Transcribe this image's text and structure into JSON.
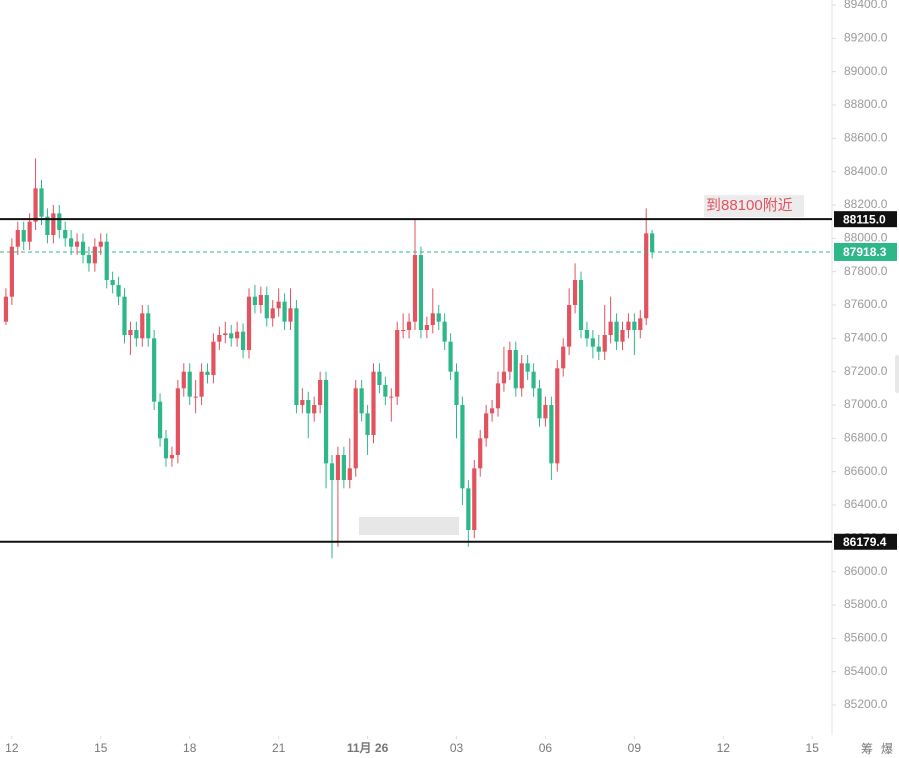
{
  "chart_data": {
    "type": "candlestick",
    "up_color": "#e2525f",
    "down_color": "#2eb88a",
    "ylim": [
      85100,
      89430
    ],
    "yticks": [
      {
        "value": 85200,
        "label": "85200.0"
      },
      {
        "value": 85400,
        "label": "85400.0"
      },
      {
        "value": 85600,
        "label": "85600.0"
      },
      {
        "value": 85800,
        "label": "85800.0"
      },
      {
        "value": 86000,
        "label": "86000.0"
      },
      {
        "value": 86200,
        "label": "86200.0"
      },
      {
        "value": 86400,
        "label": "86400.0"
      },
      {
        "value": 86600,
        "label": "86600.0"
      },
      {
        "value": 86800,
        "label": "86800.0"
      },
      {
        "value": 87000,
        "label": "87000.0"
      },
      {
        "value": 87200,
        "label": "87200.0"
      },
      {
        "value": 87400,
        "label": "87400.0"
      },
      {
        "value": 87600,
        "label": "87600.0"
      },
      {
        "value": 87800,
        "label": "87800.0"
      },
      {
        "value": 88000,
        "label": "88000.0"
      },
      {
        "value": 88200,
        "label": "88200.0"
      },
      {
        "value": 88400,
        "label": "88400.0"
      },
      {
        "value": 88600,
        "label": "88600.0"
      },
      {
        "value": 88800,
        "label": "88800.0"
      },
      {
        "value": 89000,
        "label": "89000.0"
      },
      {
        "value": 89200,
        "label": "89200.0"
      },
      {
        "value": 89400,
        "label": "89400.0"
      }
    ],
    "xlim": [
      -1,
      139
    ],
    "xticks": [
      {
        "value": 1,
        "label": "12"
      },
      {
        "value": 16,
        "label": "15"
      },
      {
        "value": 31,
        "label": "18"
      },
      {
        "value": 46,
        "label": "21"
      },
      {
        "value": 61,
        "label": "11月 26"
      },
      {
        "value": 76,
        "label": "03"
      },
      {
        "value": 91,
        "label": "06"
      },
      {
        "value": 106,
        "label": "09"
      },
      {
        "value": 121,
        "label": "12"
      },
      {
        "value": 136,
        "label": "15"
      }
    ],
    "open": [
      87500,
      87650,
      87950,
      88050,
      87980,
      88100,
      88300,
      88130,
      88020,
      88150,
      88050,
      88000,
      87950,
      87980,
      87900,
      87850,
      87950,
      87980,
      87750,
      87720,
      87650,
      87420,
      87450,
      87400,
      87550,
      87400,
      87020,
      86800,
      86680,
      86700,
      87100,
      87200,
      87050,
      87050,
      87200,
      87180,
      87380,
      87420,
      87430,
      87400,
      87440,
      87330,
      87650,
      87600,
      87660,
      87520,
      87580,
      87620,
      87500,
      87580,
      87000,
      87030,
      86950,
      87000,
      87150,
      86650,
      86550,
      86700,
      86550,
      86620,
      87100,
      86950,
      86820,
      87200,
      87120,
      87050,
      87050,
      87450,
      87450,
      87500,
      87900,
      87450,
      87480,
      87550,
      87500,
      87380,
      87200,
      87000,
      86500,
      86250,
      86620,
      86800,
      86950,
      86980,
      87130,
      87200,
      87330,
      87100,
      87250,
      87200,
      87100,
      86920,
      87000,
      86650,
      87220,
      87350,
      87600,
      87750,
      87450,
      87400,
      87350,
      87320,
      87420,
      87500,
      87380,
      87450,
      87500,
      87450,
      87520,
      88030
    ],
    "high": [
      87700,
      88000,
      88100,
      88100,
      88150,
      88480,
      88350,
      88180,
      88200,
      88200,
      88100,
      88050,
      88030,
      88030,
      87950,
      88000,
      88030,
      88030,
      87800,
      87770,
      87700,
      87500,
      87500,
      87600,
      87600,
      87450,
      87070,
      86850,
      86750,
      87150,
      87250,
      87250,
      87150,
      87250,
      87250,
      87430,
      87470,
      87500,
      87480,
      87500,
      87490,
      87700,
      87720,
      87710,
      87710,
      87630,
      87700,
      87670,
      87700,
      87630,
      87100,
      87080,
      87050,
      87200,
      87200,
      86700,
      86750,
      86750,
      86800,
      87150,
      87150,
      87000,
      87250,
      87250,
      87170,
      87100,
      87500,
      87550,
      87550,
      88120,
      87950,
      87530,
      87700,
      87600,
      87550,
      87430,
      87250,
      87050,
      86550,
      86670,
      86850,
      87000,
      87030,
      87200,
      87350,
      87380,
      87380,
      87300,
      87300,
      87250,
      87150,
      87050,
      87050,
      87270,
      87400,
      87700,
      87850,
      87800,
      87500,
      87450,
      87420,
      87600,
      87650,
      87550,
      87500,
      87550,
      87550,
      87570,
      88180,
      88050
    ],
    "low": [
      87480,
      87600,
      87900,
      87930,
      87930,
      88050,
      88080,
      87970,
      87970,
      88000,
      87950,
      87900,
      87900,
      87850,
      87800,
      87800,
      87900,
      87700,
      87670,
      87600,
      87370,
      87300,
      87350,
      87350,
      87350,
      86970,
      86750,
      86630,
      86630,
      86650,
      87050,
      87000,
      86950,
      87000,
      87130,
      87130,
      87330,
      87370,
      87350,
      87350,
      87280,
      87280,
      87550,
      87550,
      87470,
      87470,
      87530,
      87450,
      87450,
      86950,
      86950,
      86800,
      86900,
      86950,
      86500,
      86080,
      86150,
      86500,
      86500,
      86570,
      86900,
      86700,
      86770,
      87070,
      87000,
      86900,
      87000,
      87400,
      87400,
      87450,
      87400,
      87400,
      87430,
      87450,
      87330,
      87150,
      86800,
      86400,
      86150,
      86200,
      86570,
      86750,
      86900,
      86930,
      87080,
      87150,
      87050,
      87050,
      87150,
      87050,
      86870,
      86870,
      86550,
      86600,
      87170,
      87300,
      87550,
      87400,
      87350,
      87280,
      87270,
      87270,
      87370,
      87330,
      87330,
      87400,
      87300,
      87400,
      87480,
      87880
    ],
    "close": [
      87650,
      87950,
      88050,
      87980,
      88100,
      88300,
      88130,
      88020,
      88150,
      88050,
      88000,
      87950,
      87980,
      87900,
      87850,
      87950,
      87980,
      87750,
      87720,
      87650,
      87420,
      87450,
      87400,
      87550,
      87400,
      87020,
      86800,
      86680,
      86700,
      87100,
      87200,
      87050,
      87050,
      87200,
      87180,
      87380,
      87420,
      87430,
      87400,
      87440,
      87330,
      87650,
      87600,
      87660,
      87520,
      87580,
      87620,
      87500,
      87580,
      87000,
      87030,
      86950,
      87000,
      87150,
      86650,
      86550,
      86700,
      86550,
      86620,
      87100,
      86950,
      86820,
      87200,
      87120,
      87050,
      87050,
      87450,
      87450,
      87500,
      87900,
      87450,
      87480,
      87550,
      87500,
      87380,
      87200,
      87000,
      86500,
      86250,
      86620,
      86800,
      86950,
      86980,
      87130,
      87200,
      87330,
      87100,
      87250,
      87200,
      87100,
      86920,
      87000,
      86650,
      87220,
      87350,
      87600,
      87750,
      87450,
      87400,
      87350,
      87320,
      87420,
      87500,
      87380,
      87450,
      87500,
      87450,
      87520,
      88030,
      87918
    ],
    "levels": [
      {
        "value": 88115.0,
        "label": "88115.0"
      },
      {
        "value": 86179.4,
        "label": "86179.4"
      }
    ],
    "last_price": {
      "value": 87918.3,
      "label": "87918.3"
    },
    "annotation": "到88100附近",
    "corner_labels": [
      "筹",
      "爆"
    ]
  }
}
